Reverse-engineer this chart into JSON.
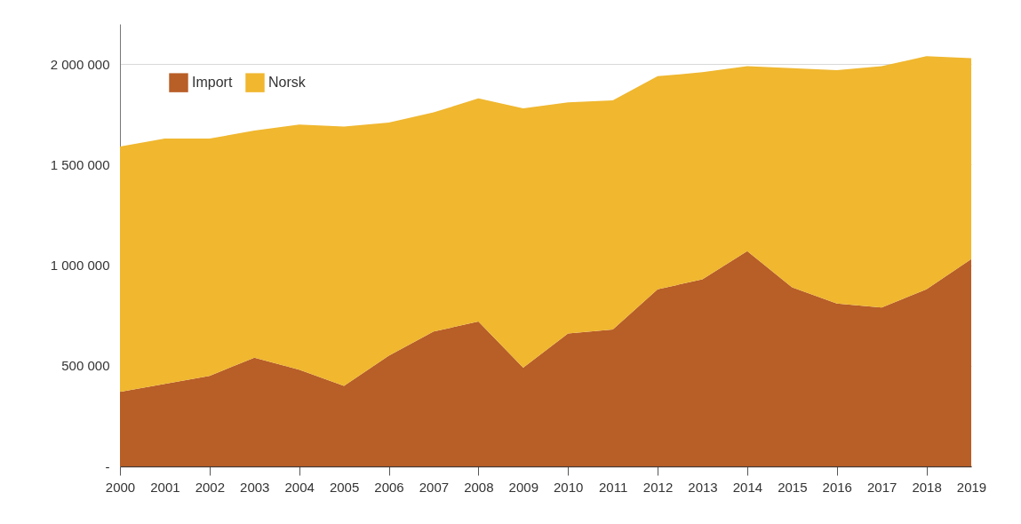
{
  "chart_data": {
    "type": "area",
    "stacked": true,
    "categories": [
      "2000",
      "2001",
      "2002",
      "2003",
      "2004",
      "2005",
      "2006",
      "2007",
      "2008",
      "2009",
      "2010",
      "2011",
      "2012",
      "2013",
      "2014",
      "2015",
      "2016",
      "2017",
      "2018",
      "2019"
    ],
    "series": [
      {
        "name": "Import",
        "color": "#b85e27",
        "values": [
          370000,
          410000,
          450000,
          540000,
          480000,
          400000,
          550000,
          670000,
          720000,
          490000,
          660000,
          680000,
          880000,
          930000,
          1070000,
          890000,
          810000,
          790000,
          880000,
          1030000
        ]
      },
      {
        "name": "Norsk",
        "color": "#f0b72f",
        "values": [
          1220000,
          1220000,
          1180000,
          1130000,
          1220000,
          1290000,
          1160000,
          1090000,
          1110000,
          1290000,
          1150000,
          1140000,
          1060000,
          1030000,
          920000,
          1090000,
          1160000,
          1200000,
          1160000,
          1000000
        ]
      }
    ],
    "ylim": [
      0,
      2200000
    ],
    "yticks": [
      {
        "value": 0,
        "label": "-"
      },
      {
        "value": 500000,
        "label": "500 000"
      },
      {
        "value": 1000000,
        "label": "1 000 000"
      },
      {
        "value": 1500000,
        "label": "1 500 000"
      },
      {
        "value": 2000000,
        "label": "2 000 000"
      }
    ],
    "grid": "y",
    "legend": "top left"
  }
}
